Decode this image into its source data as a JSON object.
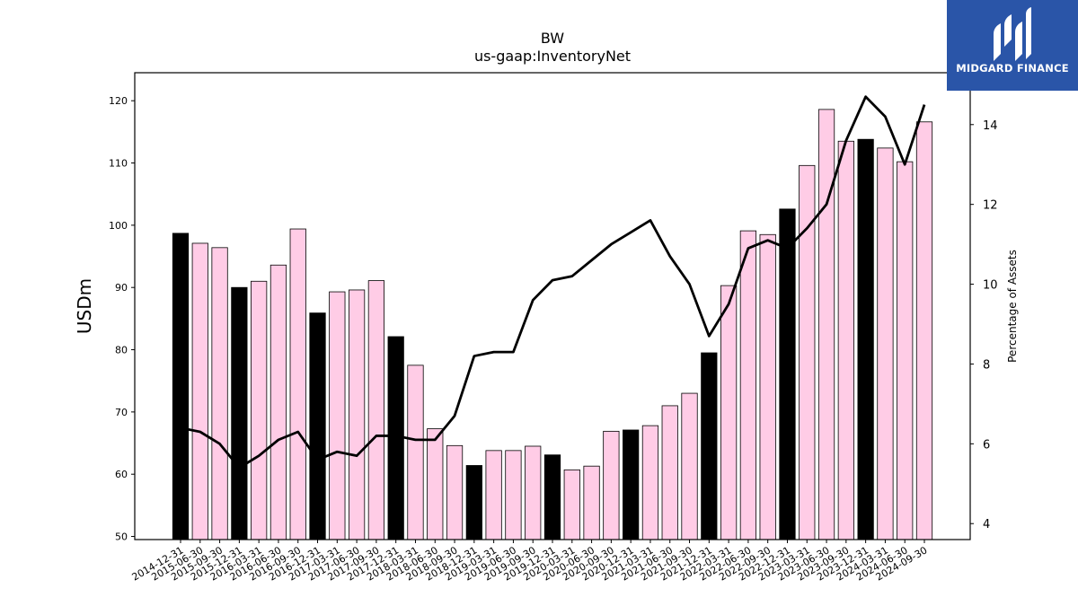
{
  "logo": {
    "text": "MIDGARD FINANCE",
    "bg_color": "#2a55a8",
    "icon": "midgard-logo-icon"
  },
  "chart_data": {
    "type": "bar",
    "title": "BW",
    "subtitle": "us-gaap:InventoryNet",
    "ylabel": "USDm",
    "y2label": "Percentage of Assets",
    "ylim": [
      49.5,
      124.5
    ],
    "y2lim": [
      3.6,
      15.3
    ],
    "yticks": [
      50,
      60,
      70,
      80,
      90,
      100,
      110,
      120
    ],
    "y2ticks": [
      4,
      6,
      8,
      10,
      12,
      14
    ],
    "grid": false,
    "colors": {
      "annual": "#000000",
      "quarterly": "#ffcce6",
      "line": "#000000"
    },
    "categories": [
      "2014-12-31",
      "2015-06-30",
      "2015-09-30",
      "2015-12-31",
      "2016-03-31",
      "2016-06-30",
      "2016-09-30",
      "2016-12-31",
      "2017-03-31",
      "2017-06-30",
      "2017-09-30",
      "2017-12-31",
      "2018-03-31",
      "2018-06-30",
      "2018-09-30",
      "2018-12-31",
      "2019-03-31",
      "2019-06-30",
      "2019-09-30",
      "2019-12-31",
      "2020-03-31",
      "2020-06-30",
      "2020-09-30",
      "2020-12-31",
      "2021-03-31",
      "2021-06-30",
      "2021-09-30",
      "2021-12-31",
      "2022-03-31",
      "2022-06-30",
      "2022-09-30",
      "2022-12-31",
      "2023-03-31",
      "2023-06-30",
      "2023-09-30",
      "2023-12-31",
      "2024-03-31",
      "2024-06-30",
      "2024-09-30"
    ],
    "series": [
      {
        "type": "bar",
        "values": [
          98.7,
          97.1,
          96.4,
          90.0,
          91.0,
          93.6,
          99.4,
          85.9,
          89.3,
          89.6,
          91.1,
          82.1,
          77.5,
          67.3,
          64.6,
          61.4,
          63.8,
          63.8,
          64.5,
          63.1,
          60.7,
          61.3,
          66.9,
          67.1,
          67.8,
          71.0,
          73.0,
          79.5,
          90.3,
          99.1,
          98.5,
          102.6,
          109.6,
          118.6,
          113.5,
          113.8,
          112.4,
          110.2,
          116.6
        ]
      },
      {
        "type": "line",
        "axis": "right",
        "values": [
          6.4,
          6.3,
          6.0,
          5.4,
          5.7,
          6.1,
          6.3,
          5.6,
          5.8,
          5.7,
          6.2,
          6.2,
          6.1,
          6.1,
          6.7,
          8.2,
          8.3,
          8.3,
          9.6,
          10.1,
          10.2,
          10.6,
          11.0,
          11.3,
          11.6,
          10.7,
          10.0,
          8.7,
          9.5,
          10.9,
          11.1,
          10.9,
          11.4,
          12.0,
          13.6,
          14.7,
          14.2,
          13.0,
          14.5
        ]
      }
    ]
  }
}
